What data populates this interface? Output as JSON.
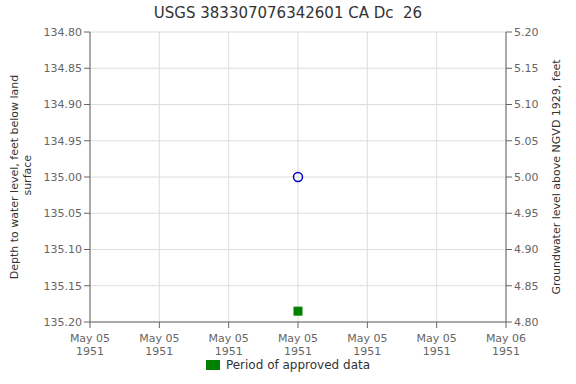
{
  "chart_data": {
    "type": "scatter",
    "title": "USGS 383307076342601 CA Dc  26",
    "ylabel": "Depth to water level, feet below land\n surface",
    "y2label": "Groundwater level above NGVD 1929, feet",
    "categories": [
      "May 05\n1951",
      "May 05\n1951",
      "May 05\n1951",
      "May 05\n1951",
      "May 05\n1951",
      "May 05\n1951",
      "May 06\n1951"
    ],
    "series": [
      {
        "color": "#0000cc",
        "marker": "circle",
        "values": [
          null,
          null,
          null,
          135.0,
          null,
          null,
          null
        ]
      },
      {
        "name": "Period of approved data",
        "color": "#008000",
        "marker": "square",
        "values": [
          null,
          null,
          null,
          135.185,
          null,
          null,
          null
        ]
      }
    ],
    "ylim": [
      135.2,
      134.8
    ],
    "yticks": [
      {
        "value": 134.8,
        "label": "134.80"
      },
      134.85,
      {
        "value": 134.9,
        "label": "134.90"
      },
      134.95,
      {
        "value": 135.0,
        "label": "135.00"
      },
      135.05,
      {
        "value": 135.1,
        "label": "135.10"
      },
      135.15,
      {
        "value": 135.2,
        "label": "135.20"
      }
    ],
    "y2lim": [
      4.8,
      5.2
    ],
    "y2ticks": [
      {
        "value": 4.8,
        "label": "4.80"
      },
      4.85,
      {
        "value": 4.9,
        "label": "4.90"
      },
      4.95,
      {
        "value": 5.0,
        "label": "5.00"
      },
      5.05,
      {
        "value": 5.1,
        "label": "5.10"
      },
      5.15,
      {
        "value": 5.2,
        "label": "5.20"
      }
    ],
    "grid": true,
    "legend": "bottom"
  }
}
